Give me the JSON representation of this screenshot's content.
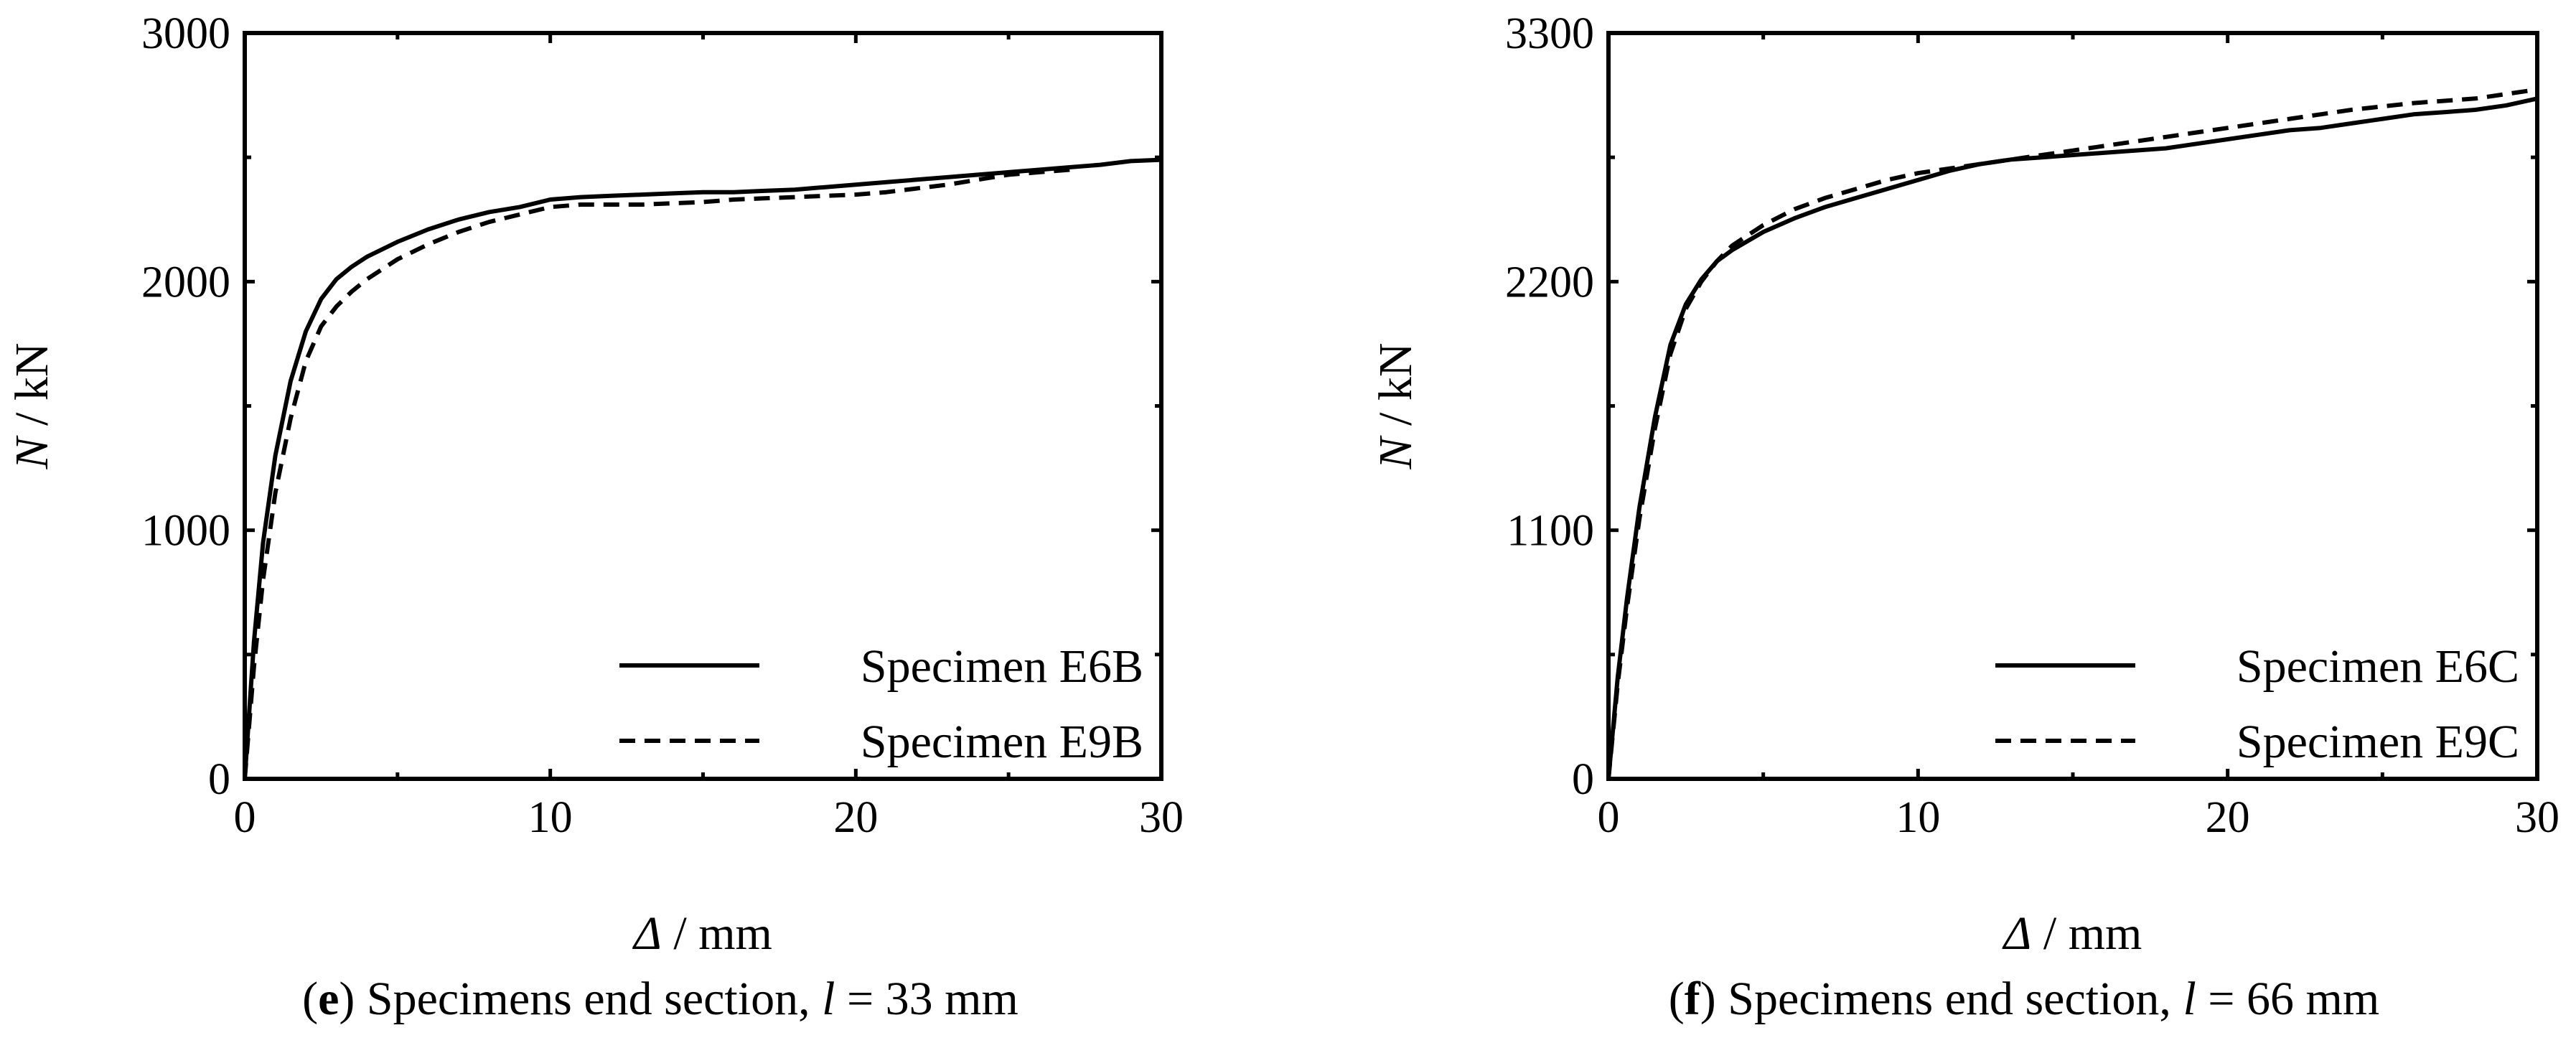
{
  "chart_data": [
    {
      "type": "line",
      "panel_label": "e",
      "caption_text": " Specimens end section, ",
      "caption_var": "l",
      "caption_value": " = 33 mm",
      "xlabel_symbol": "Δ",
      "xlabel_unit": " / mm",
      "ylabel_symbol": "N",
      "ylabel_unit": " / kN",
      "xlim": [
        0,
        30
      ],
      "ylim": [
        0,
        3000
      ],
      "xticks": [
        0,
        10,
        20,
        30
      ],
      "yticks": [
        0,
        1000,
        2000,
        3000
      ],
      "xtick_labels": [
        "0",
        "10",
        "20",
        "30"
      ],
      "ytick_labels": [
        "0",
        "1000",
        "2000",
        "3000"
      ],
      "legend_position": "bottom-right",
      "series": [
        {
          "name": "Specimen E6B",
          "style": "solid",
          "x": [
            0,
            0.3,
            0.6,
            1.0,
            1.5,
            2.0,
            2.5,
            3.0,
            3.5,
            4.0,
            5.0,
            6.0,
            7.0,
            8.0,
            9.0,
            10.0,
            11.0,
            12.0,
            13.0,
            14.0,
            15.0,
            16.0,
            17.0,
            18.0,
            19.0,
            20.0,
            21.0,
            22.0,
            23.0,
            24.0,
            25.0,
            26.0,
            27.0,
            28.0,
            29.0,
            30.0
          ],
          "y": [
            0,
            550,
            950,
            1300,
            1600,
            1800,
            1930,
            2010,
            2060,
            2100,
            2160,
            2210,
            2250,
            2280,
            2300,
            2330,
            2340,
            2345,
            2350,
            2355,
            2360,
            2360,
            2365,
            2370,
            2380,
            2390,
            2400,
            2410,
            2420,
            2430,
            2440,
            2450,
            2460,
            2470,
            2485,
            2490
          ]
        },
        {
          "name": "Specimen E9B",
          "style": "dashed",
          "x": [
            0,
            0.3,
            0.6,
            1.0,
            1.5,
            2.0,
            2.5,
            3.0,
            3.5,
            4.0,
            5.0,
            6.0,
            7.0,
            8.0,
            9.0,
            10.0,
            11.0,
            12.0,
            13.0,
            14.0,
            15.0,
            16.0,
            17.0,
            18.0,
            19.0,
            20.0,
            21.0,
            22.0,
            23.0,
            24.0,
            25.0,
            26.0,
            27.0
          ],
          "y": [
            0,
            450,
            800,
            1150,
            1450,
            1680,
            1820,
            1900,
            1960,
            2010,
            2090,
            2150,
            2200,
            2240,
            2270,
            2300,
            2310,
            2310,
            2310,
            2315,
            2320,
            2330,
            2335,
            2340,
            2345,
            2350,
            2360,
            2375,
            2390,
            2410,
            2430,
            2440,
            2450
          ]
        }
      ]
    },
    {
      "type": "line",
      "panel_label": "f",
      "caption_text": " Specimens end section, ",
      "caption_var": "l",
      "caption_value": " = 66 mm",
      "xlabel_symbol": "Δ",
      "xlabel_unit": " / mm",
      "ylabel_symbol": "N",
      "ylabel_unit": " / kN",
      "xlim": [
        0,
        30
      ],
      "ylim": [
        0,
        3300
      ],
      "xticks": [
        0,
        10,
        20,
        30
      ],
      "yticks": [
        0,
        1100,
        2200,
        3300
      ],
      "xtick_labels": [
        "0",
        "10",
        "20",
        "30"
      ],
      "ytick_labels": [
        "0",
        "1100",
        "2200",
        "3300"
      ],
      "legend_position": "bottom-right",
      "series": [
        {
          "name": "Specimen E6C",
          "style": "solid",
          "x": [
            0,
            0.3,
            0.6,
            1.0,
            1.5,
            2.0,
            2.5,
            3.0,
            3.5,
            4.0,
            5.0,
            6.0,
            7.0,
            8.0,
            9.0,
            10.0,
            11.0,
            12.0,
            13.0,
            14.0,
            15.0,
            16.0,
            17.0,
            18.0,
            19.0,
            20.0,
            21.0,
            22.0,
            23.0,
            24.0,
            25.0,
            26.0,
            27.0,
            28.0,
            29.0,
            30.0
          ],
          "y": [
            0,
            450,
            800,
            1200,
            1600,
            1920,
            2100,
            2210,
            2290,
            2340,
            2420,
            2480,
            2530,
            2570,
            2610,
            2650,
            2690,
            2720,
            2740,
            2750,
            2760,
            2770,
            2780,
            2790,
            2810,
            2830,
            2850,
            2870,
            2880,
            2900,
            2920,
            2940,
            2950,
            2960,
            2980,
            3010
          ]
        },
        {
          "name": "Specimen E9C",
          "style": "dashed",
          "x": [
            0,
            0.3,
            0.6,
            1.0,
            1.5,
            2.0,
            2.5,
            3.0,
            3.5,
            4.0,
            5.0,
            6.0,
            7.0,
            8.0,
            9.0,
            10.0,
            11.0,
            12.0,
            13.0,
            14.0,
            15.0,
            16.0,
            17.0,
            18.0,
            19.0,
            20.0,
            21.0,
            22.0,
            23.0,
            24.0,
            25.0,
            26.0,
            27.0,
            28.0,
            29.0,
            30.0
          ],
          "y": [
            0,
            420,
            760,
            1150,
            1550,
            1880,
            2080,
            2200,
            2290,
            2360,
            2450,
            2520,
            2570,
            2610,
            2650,
            2680,
            2700,
            2720,
            2740,
            2760,
            2780,
            2800,
            2820,
            2840,
            2860,
            2880,
            2900,
            2920,
            2940,
            2960,
            2975,
            2990,
            3000,
            3010,
            3030,
            3050
          ]
        }
      ]
    }
  ]
}
